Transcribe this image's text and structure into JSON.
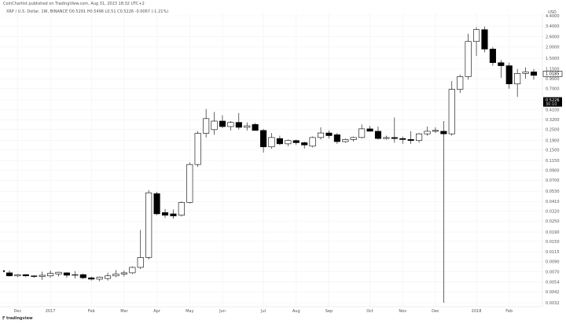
{
  "header": {
    "caption": "CoinChartist published on TradingView.com, Aug 31, 2023 18:32 UTC+2",
    "symbol_line": "XRP / U.S. Dollar, 1W, BINANCE  O0.5291  H0.5496  L0.51  C0.5226  -0.0067 (-1.21%)"
  },
  "logo": {
    "text": "tradingview",
    "icon": "tradingview-logo"
  },
  "colors": {
    "up_fill": "#ffffff",
    "down_fill": "#000000",
    "candle_stroke": "#000000",
    "grid": "#f2f2f2",
    "price_tag_bg": "#000000"
  },
  "chart_data": {
    "type": "candlestick",
    "scale": "log",
    "currency_label": "USD",
    "grid": true,
    "y_ticks": [
      "4.4000",
      "3.4000",
      "2.6000",
      "2.0000",
      "1.5000",
      "1.1500",
      "0.9000",
      "0.7000",
      "0.5300",
      "0.4100",
      "0.3200",
      "0.2500",
      "0.1900",
      "0.1500",
      "0.1150",
      "0.0900",
      "0.0700",
      "0.0530",
      "0.0410",
      "0.0320",
      "0.0250",
      "0.0190",
      "0.0150",
      "0.0115",
      "0.0090",
      "0.0070",
      "0.0054",
      "0.0042",
      "0.0032"
    ],
    "x_ticks": [
      "Dec",
      "2017",
      "Feb",
      "Mar",
      "Apr",
      "May",
      "Jun",
      "Jul",
      "Aug",
      "Sep",
      "Oct",
      "Nov",
      "Dec",
      "2018",
      "Feb"
    ],
    "price_tags": [
      {
        "value": "1.0185",
        "style": "outline"
      },
      {
        "value": "0.5226",
        "style": "filled"
      },
      {
        "value": "30:10",
        "style": "sub"
      }
    ],
    "candles": [
      {
        "o": 0.0068,
        "h": 0.0072,
        "l": 0.0062,
        "c": 0.0063
      },
      {
        "o": 0.0063,
        "h": 0.0066,
        "l": 0.0061,
        "c": 0.0065
      },
      {
        "o": 0.0065,
        "h": 0.0066,
        "l": 0.0061,
        "c": 0.0063
      },
      {
        "o": 0.0063,
        "h": 0.0064,
        "l": 0.006,
        "c": 0.0062
      },
      {
        "o": 0.0062,
        "h": 0.007,
        "l": 0.0057,
        "c": 0.0064
      },
      {
        "o": 0.0063,
        "h": 0.0072,
        "l": 0.006,
        "c": 0.0067
      },
      {
        "o": 0.0066,
        "h": 0.007,
        "l": 0.0062,
        "c": 0.0069
      },
      {
        "o": 0.0068,
        "h": 0.0069,
        "l": 0.006,
        "c": 0.0064
      },
      {
        "o": 0.0064,
        "h": 0.0071,
        "l": 0.0059,
        "c": 0.0065
      },
      {
        "o": 0.0065,
        "h": 0.0067,
        "l": 0.0058,
        "c": 0.006
      },
      {
        "o": 0.006,
        "h": 0.0062,
        "l": 0.0056,
        "c": 0.0058
      },
      {
        "o": 0.0058,
        "h": 0.0062,
        "l": 0.0055,
        "c": 0.0061
      },
      {
        "o": 0.0059,
        "h": 0.0068,
        "l": 0.0056,
        "c": 0.0063
      },
      {
        "o": 0.0063,
        "h": 0.0073,
        "l": 0.0061,
        "c": 0.0066
      },
      {
        "o": 0.0066,
        "h": 0.0072,
        "l": 0.0062,
        "c": 0.0068
      },
      {
        "o": 0.0068,
        "h": 0.008,
        "l": 0.0066,
        "c": 0.0078
      },
      {
        "o": 0.0078,
        "h": 0.02,
        "l": 0.0075,
        "c": 0.01
      },
      {
        "o": 0.01,
        "h": 0.0545,
        "l": 0.0095,
        "c": 0.051
      },
      {
        "o": 0.05,
        "h": 0.052,
        "l": 0.029,
        "c": 0.03
      },
      {
        "o": 0.031,
        "h": 0.034,
        "l": 0.027,
        "c": 0.029
      },
      {
        "o": 0.03,
        "h": 0.0335,
        "l": 0.0265,
        "c": 0.0285
      },
      {
        "o": 0.029,
        "h": 0.041,
        "l": 0.028,
        "c": 0.04
      },
      {
        "o": 0.04,
        "h": 0.11,
        "l": 0.039,
        "c": 0.104
      },
      {
        "o": 0.104,
        "h": 0.24,
        "l": 0.098,
        "c": 0.228
      },
      {
        "o": 0.228,
        "h": 0.42,
        "l": 0.205,
        "c": 0.33
      },
      {
        "o": 0.25,
        "h": 0.39,
        "l": 0.22,
        "c": 0.31
      },
      {
        "o": 0.31,
        "h": 0.36,
        "l": 0.26,
        "c": 0.27
      },
      {
        "o": 0.27,
        "h": 0.31,
        "l": 0.245,
        "c": 0.3
      },
      {
        "o": 0.3,
        "h": 0.38,
        "l": 0.25,
        "c": 0.265
      },
      {
        "o": 0.265,
        "h": 0.3,
        "l": 0.245,
        "c": 0.275
      },
      {
        "o": 0.285,
        "h": 0.295,
        "l": 0.25,
        "c": 0.245
      },
      {
        "o": 0.245,
        "h": 0.255,
        "l": 0.14,
        "c": 0.162
      },
      {
        "o": 0.162,
        "h": 0.23,
        "l": 0.155,
        "c": 0.205
      },
      {
        "o": 0.2,
        "h": 0.215,
        "l": 0.17,
        "c": 0.175
      },
      {
        "o": 0.175,
        "h": 0.195,
        "l": 0.165,
        "c": 0.19
      },
      {
        "o": 0.19,
        "h": 0.195,
        "l": 0.17,
        "c": 0.18
      },
      {
        "o": 0.18,
        "h": 0.185,
        "l": 0.155,
        "c": 0.17
      },
      {
        "o": 0.165,
        "h": 0.21,
        "l": 0.16,
        "c": 0.205
      },
      {
        "o": 0.205,
        "h": 0.265,
        "l": 0.195,
        "c": 0.23
      },
      {
        "o": 0.23,
        "h": 0.245,
        "l": 0.2,
        "c": 0.215
      },
      {
        "o": 0.22,
        "h": 0.23,
        "l": 0.175,
        "c": 0.185
      },
      {
        "o": 0.185,
        "h": 0.2,
        "l": 0.18,
        "c": 0.195
      },
      {
        "o": 0.195,
        "h": 0.21,
        "l": 0.185,
        "c": 0.205
      },
      {
        "o": 0.205,
        "h": 0.285,
        "l": 0.2,
        "c": 0.255
      },
      {
        "o": 0.255,
        "h": 0.275,
        "l": 0.24,
        "c": 0.24
      },
      {
        "o": 0.24,
        "h": 0.27,
        "l": 0.195,
        "c": 0.2
      },
      {
        "o": 0.2,
        "h": 0.215,
        "l": 0.195,
        "c": 0.205
      },
      {
        "o": 0.205,
        "h": 0.34,
        "l": 0.18,
        "c": 0.2
      },
      {
        "o": 0.2,
        "h": 0.21,
        "l": 0.175,
        "c": 0.195
      },
      {
        "o": 0.195,
        "h": 0.24,
        "l": 0.175,
        "c": 0.19
      },
      {
        "o": 0.19,
        "h": 0.23,
        "l": 0.18,
        "c": 0.225
      },
      {
        "o": 0.225,
        "h": 0.27,
        "l": 0.215,
        "c": 0.24
      },
      {
        "o": 0.24,
        "h": 0.265,
        "l": 0.23,
        "c": 0.245
      },
      {
        "o": 0.24,
        "h": 0.31,
        "l": 0.0032,
        "c": 0.225
      },
      {
        "o": 0.225,
        "h": 0.85,
        "l": 0.215,
        "c": 0.69
      },
      {
        "o": 0.69,
        "h": 1.0,
        "l": 0.63,
        "c": 0.95
      },
      {
        "o": 0.95,
        "h": 2.8,
        "l": 0.88,
        "c": 2.3
      },
      {
        "o": 2.3,
        "h": 3.3,
        "l": 1.6,
        "c": 3.1
      },
      {
        "o": 3.1,
        "h": 3.35,
        "l": 1.75,
        "c": 1.9
      },
      {
        "o": 1.9,
        "h": 2.0,
        "l": 1.25,
        "c": 1.35
      },
      {
        "o": 1.35,
        "h": 1.45,
        "l": 0.92,
        "c": 1.25
      },
      {
        "o": 1.25,
        "h": 1.35,
        "l": 0.7,
        "c": 0.79
      },
      {
        "o": 0.79,
        "h": 1.15,
        "l": 0.57,
        "c": 1.03
      },
      {
        "o": 1.03,
        "h": 1.2,
        "l": 0.9,
        "c": 1.07
      },
      {
        "o": 1.07,
        "h": 1.15,
        "l": 0.88,
        "c": 0.98
      }
    ]
  }
}
